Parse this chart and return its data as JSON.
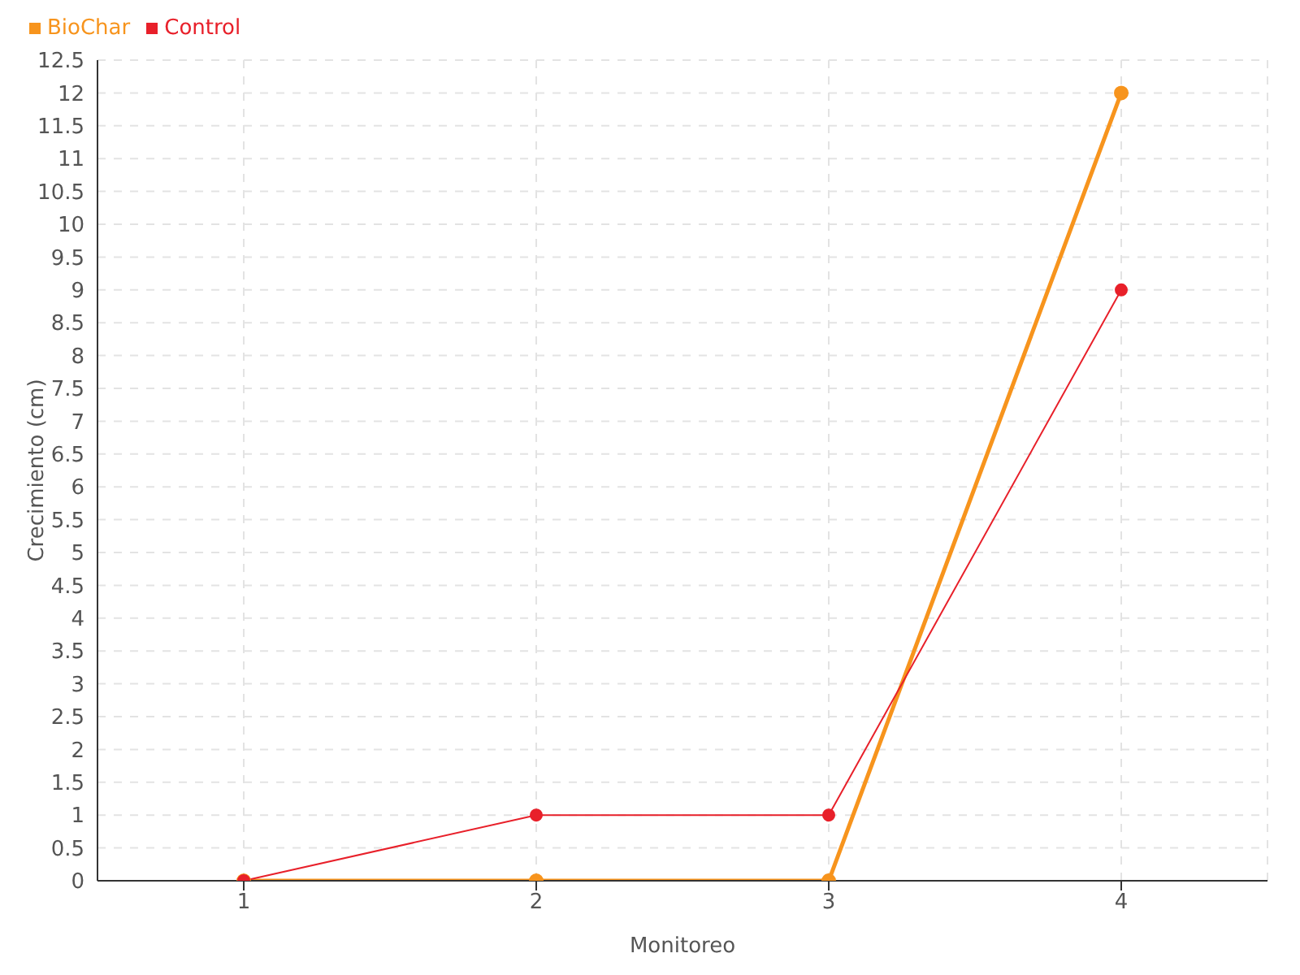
{
  "chart_data": {
    "type": "line",
    "xlabel": "Monitoreo",
    "ylabel": "Crecimiento (cm)",
    "categories": [
      "1",
      "2",
      "3",
      "4"
    ],
    "series": [
      {
        "name": "BioChar",
        "color": "#f7941d",
        "values": [
          0,
          0,
          0,
          12
        ]
      },
      {
        "name": "Control",
        "color": "#e8202a",
        "values": [
          0,
          1,
          1,
          9
        ]
      }
    ],
    "ylim": [
      0,
      12.5
    ],
    "yticks": [
      0,
      0.5,
      1,
      1.5,
      2,
      2.5,
      3,
      3.5,
      4,
      4.5,
      5,
      5.5,
      6,
      6.5,
      7,
      7.5,
      8,
      8.5,
      9,
      9.5,
      10,
      10.5,
      11,
      11.5,
      12,
      12.5
    ],
    "grid": true,
    "legend": "top left",
    "marker": "circle",
    "line_style": "solid"
  }
}
